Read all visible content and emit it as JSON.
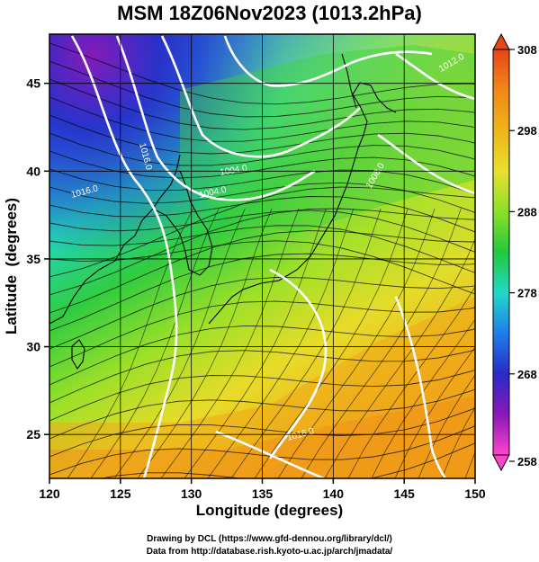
{
  "title": "MSM 18Z06Nov2023 (1013.2hPa)",
  "xlabel": "Longitude (degrees)",
  "ylabel": "Latitude  (degrees)",
  "x_ticks": [
    "120",
    "125",
    "130",
    "135",
    "140",
    "145",
    "150"
  ],
  "y_ticks": [
    "25",
    "30",
    "35",
    "40",
    "45"
  ],
  "colorbar_ticks": [
    "308",
    "298",
    "288",
    "278",
    "268",
    "258"
  ],
  "contour_labels": [
    "1004.0",
    "1016.0",
    "1004.0",
    "1008.0",
    "1012.0",
    "1016.0",
    "1016.0"
  ],
  "footer": {
    "line1": "Drawing by DCL (https://www.gfd-dennou.org/library/dcl/)",
    "line2": "Data from http://database.rish.kyoto-u.ac.jp/arch/jmadata/"
  },
  "chart_data": {
    "type": "heatmap",
    "title": "MSM 18Z06Nov2023 (1013.2hPa)",
    "xlabel": "Longitude (degrees)",
    "ylabel": "Latitude  (degrees)",
    "xlim": [
      120,
      150
    ],
    "ylim": [
      22.5,
      47.8
    ],
    "colorbar_range": [
      258,
      308
    ],
    "colormap": [
      "#ff44cc",
      "#8a18b8",
      "#2a2ac8",
      "#1e7ee8",
      "#22d8c8",
      "#22c83c",
      "#8ae028",
      "#e8e030",
      "#f0b418",
      "#f08818",
      "#e84418"
    ],
    "overlays": [
      "temperature shading",
      "pressure contours (hPa)",
      "wind streamlines",
      "coastlines"
    ],
    "pressure_contours_hPa": [
      1004,
      1008,
      1012,
      1016
    ]
  }
}
